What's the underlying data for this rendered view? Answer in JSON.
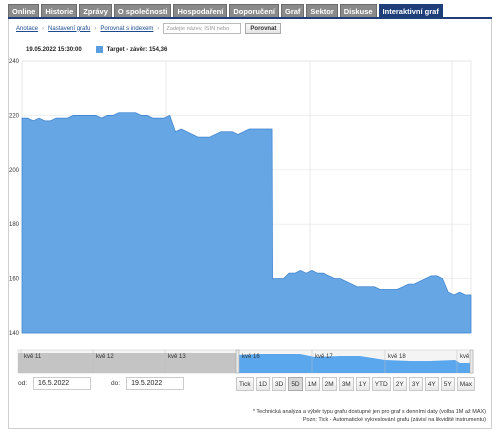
{
  "tabs": [
    "Online",
    "Historie",
    "Zprávy",
    "O společnosti",
    "Hospodaření",
    "Doporučení",
    "Graf",
    "Sektor",
    "Diskuse",
    "Interaktivní graf"
  ],
  "active_tab": "Interaktivní graf",
  "toolbar": {
    "annotation": "Anotace",
    "settings": "Nastavení grafu",
    "compare_index": "Porovnat s indexem",
    "search_placeholder": "Zadejte název, ISIN nebo",
    "compare_button": "Porovnat"
  },
  "info": {
    "timestamp": "19.05.2022 15:30:00",
    "legend": "Target - závěr: 154,36"
  },
  "colors": {
    "series": "#5a9ee2",
    "tab_active": "#1f3f7a",
    "tab": "#8a8a8a"
  },
  "chart_data": {
    "type": "area",
    "ylim": [
      140,
      240
    ],
    "yticks": [
      "240",
      "220",
      "200",
      "180",
      "160",
      "140"
    ],
    "series": [
      {
        "values": [
          219,
          219,
          218,
          219,
          218,
          218,
          219,
          219,
          219,
          220,
          220,
          220,
          220,
          220,
          219,
          220,
          220,
          221,
          221,
          221,
          221,
          220,
          220,
          219,
          219,
          219,
          220,
          214,
          215,
          214,
          213,
          212,
          212,
          212,
          213,
          214,
          214,
          214,
          213,
          214,
          215,
          215,
          215,
          215,
          215,
          160,
          160,
          162,
          162,
          163,
          162,
          163,
          162,
          162,
          161,
          160,
          160,
          159,
          158,
          157,
          157,
          157,
          157,
          156,
          156,
          156,
          156,
          157,
          158,
          158,
          159,
          160,
          161,
          161,
          160,
          155,
          154,
          155,
          154,
          154
        ]
      }
    ],
    "navigator_labels": [
      "kvě 11",
      "kvě 12",
      "kvě 13",
      "kvě 16",
      "kvě 17",
      "kvě 18",
      "kvě"
    ]
  },
  "dates": {
    "from_label": "od:",
    "from_value": "16.5.2022",
    "to_label": "do:",
    "to_value": "19.5.2022"
  },
  "ranges": [
    "Tick",
    "1D",
    "3D",
    "5D",
    "1M",
    "2M",
    "3M",
    "1Y",
    "YTD",
    "2Y",
    "3Y",
    "4Y",
    "5Y",
    "Max"
  ],
  "selected_range": "5D",
  "notes": {
    "line1": "* Technická analýza a výběr typu grafu dostupné jen pro graf s denními daty (volba 1M až MAX)",
    "line2": "Pozn: Tick - Automatické vykreslování grafu (závisí na likviditě instrumentu)"
  }
}
